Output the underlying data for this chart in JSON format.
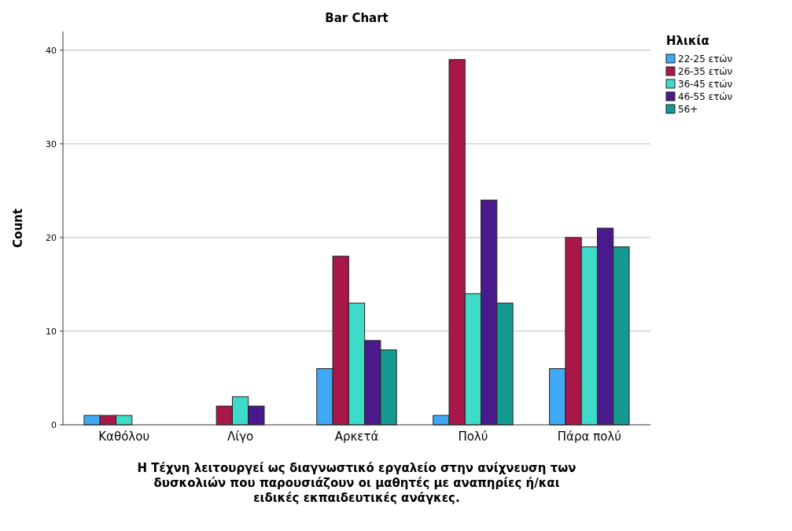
{
  "chart_data": {
    "type": "bar",
    "title": "Bar Chart",
    "xlabel": "Η Τέχνη λειτουργεί ως διαγνωστικό εργαλείο στην ανίχνευση των δυσκολιών που παρουσιάζουν οι μαθητές με αναπηρίες ή/και ειδικές εκπαιδευτικές ανάγκες.",
    "ylabel": "Count",
    "legend_title": "Ηλικία",
    "categories": [
      "Καθόλου",
      "Λίγο",
      "Αρκετά",
      "Πολύ",
      "Πάρα πολύ"
    ],
    "series": [
      {
        "name": "22-25 ετών",
        "color": "#3fa9f5",
        "values": [
          1,
          null,
          6,
          1,
          6
        ]
      },
      {
        "name": "26-35 ετών",
        "color": "#a8174a",
        "values": [
          1,
          2,
          18,
          39,
          20
        ]
      },
      {
        "name": "36-45 ετών",
        "color": "#3ddbc8",
        "values": [
          1,
          3,
          13,
          14,
          19
        ]
      },
      {
        "name": "46-55 ετών",
        "color": "#4a1a8c",
        "values": [
          null,
          2,
          9,
          24,
          21
        ]
      },
      {
        "name": "56+",
        "color": "#159a92",
        "values": [
          null,
          null,
          8,
          13,
          19
        ]
      }
    ],
    "ylim": [
      0,
      42
    ],
    "yticks": [
      0,
      10,
      20,
      30,
      40
    ],
    "grid": "y",
    "legend": "top right"
  }
}
